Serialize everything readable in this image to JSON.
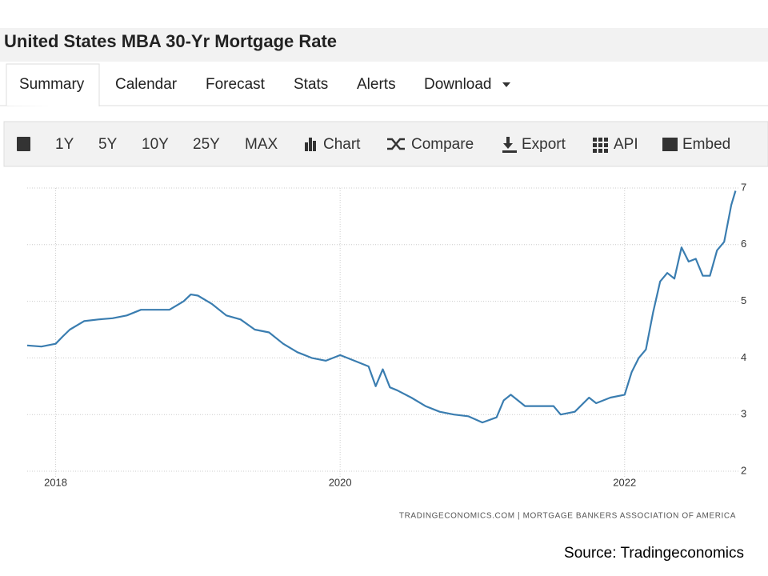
{
  "header": {
    "title": "United States MBA 30-Yr Mortgage Rate"
  },
  "tabs": [
    "Summary",
    "Calendar",
    "Forecast",
    "Stats",
    "Alerts",
    "Download"
  ],
  "toolbar": [
    "1Y",
    "5Y",
    "10Y",
    "25Y",
    "MAX",
    "Chart",
    "Compare",
    "Export",
    "API",
    "Embed"
  ],
  "attribution": "TRADINGECONOMICS.COM | MORTGAGE BANKERS ASSOCIATION OF AMERICA",
  "source": "Source: Tradingeconomics",
  "chart_data": {
    "type": "line",
    "color": "#3a7db0",
    "grid": true,
    "x": [
      2017.8,
      2017.9,
      2018.0,
      2018.05,
      2018.1,
      2018.2,
      2018.3,
      2018.4,
      2018.5,
      2018.6,
      2018.7,
      2018.8,
      2018.9,
      2018.95,
      2019.0,
      2019.1,
      2019.2,
      2019.3,
      2019.4,
      2019.5,
      2019.6,
      2019.7,
      2019.8,
      2019.9,
      2020.0,
      2020.05,
      2020.1,
      2020.2,
      2020.25,
      2020.3,
      2020.35,
      2020.4,
      2020.5,
      2020.6,
      2020.7,
      2020.8,
      2020.9,
      2021.0,
      2021.1,
      2021.15,
      2021.2,
      2021.3,
      2021.4,
      2021.5,
      2021.55,
      2021.65,
      2021.75,
      2021.8,
      2021.9,
      2022.0,
      2022.05,
      2022.1,
      2022.15,
      2022.2,
      2022.25,
      2022.3,
      2022.35,
      2022.4,
      2022.45,
      2022.5,
      2022.55,
      2022.6,
      2022.65,
      2022.7,
      2022.75,
      2022.78
    ],
    "values": [
      4.22,
      4.2,
      4.25,
      4.38,
      4.5,
      4.65,
      4.68,
      4.7,
      4.75,
      4.85,
      4.85,
      4.85,
      5.0,
      5.12,
      5.1,
      4.95,
      4.75,
      4.68,
      4.5,
      4.45,
      4.25,
      4.1,
      4.0,
      3.95,
      4.05,
      4.0,
      3.95,
      3.85,
      3.5,
      3.8,
      3.48,
      3.43,
      3.3,
      3.15,
      3.05,
      3.0,
      2.97,
      2.86,
      2.95,
      3.25,
      3.35,
      3.15,
      3.15,
      3.15,
      3.0,
      3.05,
      3.3,
      3.2,
      3.3,
      3.35,
      3.75,
      4.0,
      4.15,
      4.8,
      5.35,
      5.5,
      5.4,
      5.95,
      5.7,
      5.75,
      5.45,
      5.45,
      5.9,
      6.05,
      6.7,
      6.95
    ],
    "xlim": [
      2017.8,
      2022.8
    ],
    "xticks": [
      2018,
      2020,
      2022
    ],
    "ylim": [
      2,
      7
    ],
    "yticks": [
      2,
      3,
      4,
      5,
      6,
      7
    ]
  }
}
